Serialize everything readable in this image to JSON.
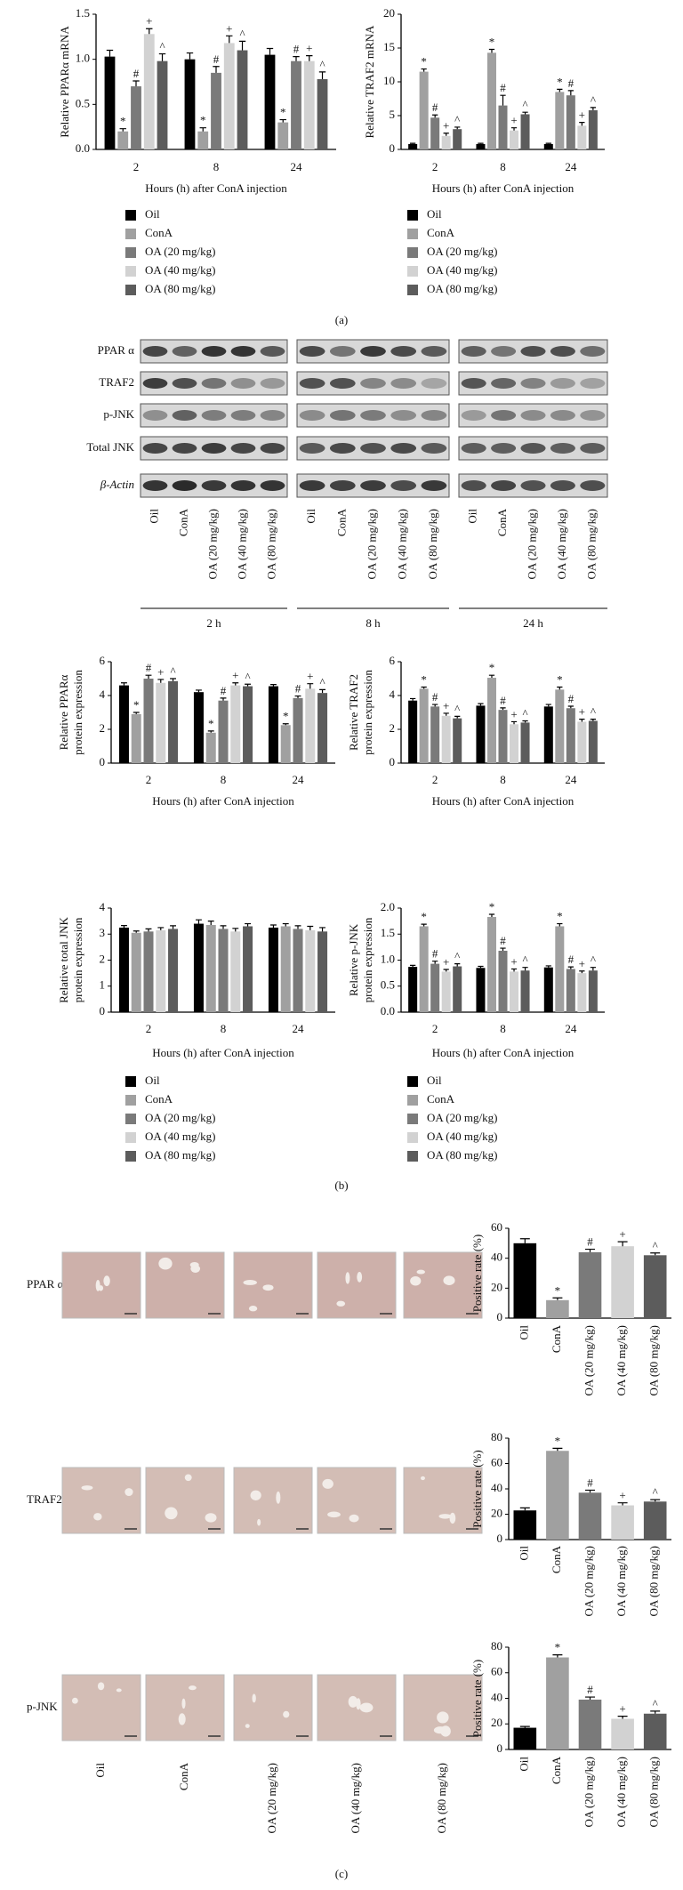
{
  "panels": [
    "(a)",
    "(b)",
    "(c)"
  ],
  "blot": {
    "rows": [
      "PPAR α",
      "TRAF2",
      "p-JNK",
      "Total JNK",
      "β-Actin"
    ],
    "lanes": [
      "Oil",
      "ConA",
      "OA (20 mg/kg)",
      "OA (40 mg/kg)",
      "OA (80 mg/kg)"
    ],
    "groups": [
      "2 h",
      "8 h",
      "24 h"
    ]
  },
  "histology": {
    "rows": [
      "PPAR α",
      "TRAF2",
      "p-JNK"
    ],
    "columns": [
      "Oil",
      "ConA",
      "OA (20 mg/kg)",
      "OA (40 mg/kg)",
      "OA (80 mg/kg)"
    ]
  },
  "chart_data": [
    {
      "type": "grouped_bar",
      "ylabel": [
        "Relative PPARα mRNA"
      ],
      "xlabel": "Hours (h) after ConA injection",
      "categories": [
        "2",
        "8",
        "24"
      ],
      "ylim": [
        0,
        1.5
      ],
      "yticks": [
        {
          "value": 0,
          "label": "0.0"
        },
        0.5,
        {
          "value": 1,
          "label": "1.0"
        },
        1.5
      ],
      "legend": "below",
      "series": [
        {
          "name": "Oil",
          "color": "#000000",
          "marker": null,
          "values": [
            1.03,
            1.0,
            1.05
          ],
          "errors": [
            0.07,
            0.07,
            0.07
          ]
        },
        {
          "name": "ConA",
          "color": "#a0a0a0",
          "marker": "*",
          "values": [
            0.2,
            0.2,
            0.3
          ],
          "errors": [
            0.03,
            0.04,
            0.03
          ]
        },
        {
          "name": "OA (20 mg/kg)",
          "color": "#7a7a7a",
          "marker": "#",
          "values": [
            0.7,
            0.85,
            0.98
          ],
          "errors": [
            0.06,
            0.07,
            0.05
          ]
        },
        {
          "name": "OA (40 mg/kg)",
          "color": "#d2d2d2",
          "marker": "+",
          "values": [
            1.28,
            1.18,
            0.98
          ],
          "errors": [
            0.06,
            0.08,
            0.06
          ]
        },
        {
          "name": "OA (80 mg/kg)",
          "color": "#5c5c5c",
          "marker": "^",
          "values": [
            0.98,
            1.1,
            0.78
          ],
          "errors": [
            0.08,
            0.1,
            0.08
          ]
        }
      ]
    },
    {
      "type": "grouped_bar",
      "ylabel": [
        "Relative TRAF2 mRNA"
      ],
      "xlabel": "Hours (h) after ConA injection",
      "categories": [
        "2",
        "8",
        "24"
      ],
      "ylim": [
        0,
        20
      ],
      "yticks": [
        0,
        5,
        10,
        15,
        20
      ],
      "legend": "below",
      "series": [
        {
          "name": "Oil",
          "color": "#000000",
          "marker": null,
          "values": [
            0.8,
            0.8,
            0.8
          ],
          "errors": [
            0.1,
            0.1,
            0.1
          ]
        },
        {
          "name": "ConA",
          "color": "#a0a0a0",
          "marker": "*",
          "values": [
            11.5,
            14.3,
            8.5
          ],
          "errors": [
            0.4,
            0.5,
            0.4
          ]
        },
        {
          "name": "OA (20 mg/kg)",
          "color": "#7a7a7a",
          "marker": "#",
          "values": [
            4.7,
            6.5,
            8.0
          ],
          "errors": [
            0.4,
            1.5,
            0.7
          ]
        },
        {
          "name": "OA (40 mg/kg)",
          "color": "#d2d2d2",
          "marker": "+",
          "values": [
            2.0,
            2.8,
            3.5
          ],
          "errors": [
            0.4,
            0.4,
            0.5
          ]
        },
        {
          "name": "OA (80 mg/kg)",
          "color": "#5c5c5c",
          "marker": "^",
          "values": [
            3.0,
            5.2,
            5.8
          ],
          "errors": [
            0.3,
            0.3,
            0.4
          ]
        }
      ]
    },
    {
      "type": "grouped_bar",
      "ylabel": [
        "Relative PPARα",
        "protein expression"
      ],
      "xlabel": "Hours (h) after ConA injection",
      "categories": [
        "2",
        "8",
        "24"
      ],
      "ylim": [
        0,
        6
      ],
      "yticks": [
        0,
        2,
        4,
        6
      ],
      "series": [
        {
          "name": "Oil",
          "color": "#000000",
          "marker": null,
          "values": [
            4.6,
            4.2,
            4.55
          ],
          "errors": [
            0.15,
            0.12,
            0.1
          ]
        },
        {
          "name": "ConA",
          "color": "#a0a0a0",
          "marker": "*",
          "values": [
            2.9,
            1.8,
            2.25
          ],
          "errors": [
            0.1,
            0.1,
            0.08
          ]
        },
        {
          "name": "OA (20 mg/kg)",
          "color": "#7a7a7a",
          "marker": "#",
          "values": [
            5.0,
            3.7,
            3.85
          ],
          "errors": [
            0.2,
            0.15,
            0.12
          ]
        },
        {
          "name": "OA (40 mg/kg)",
          "color": "#d2d2d2",
          "marker": "+",
          "values": [
            4.75,
            4.6,
            4.4
          ],
          "errors": [
            0.2,
            0.15,
            0.3
          ]
        },
        {
          "name": "OA (80 mg/kg)",
          "color": "#5c5c5c",
          "marker": "^",
          "values": [
            4.85,
            4.55,
            4.15
          ],
          "errors": [
            0.15,
            0.12,
            0.2
          ]
        }
      ]
    },
    {
      "type": "grouped_bar",
      "ylabel": [
        "Relative TRAF2",
        "protein expression"
      ],
      "xlabel": "Hours (h) after ConA injection",
      "categories": [
        "2",
        "8",
        "24"
      ],
      "ylim": [
        0,
        6
      ],
      "yticks": [
        0,
        2,
        4,
        6
      ],
      "series": [
        {
          "name": "Oil",
          "color": "#000000",
          "marker": null,
          "values": [
            3.7,
            3.4,
            3.35
          ],
          "errors": [
            0.12,
            0.12,
            0.12
          ]
        },
        {
          "name": "ConA",
          "color": "#a0a0a0",
          "marker": "*",
          "values": [
            4.4,
            5.05,
            4.35
          ],
          "errors": [
            0.1,
            0.15,
            0.15
          ]
        },
        {
          "name": "OA (20 mg/kg)",
          "color": "#7a7a7a",
          "marker": "#",
          "values": [
            3.35,
            3.15,
            3.25
          ],
          "errors": [
            0.12,
            0.12,
            0.12
          ]
        },
        {
          "name": "OA (40 mg/kg)",
          "color": "#d2d2d2",
          "marker": "+",
          "values": [
            2.8,
            2.3,
            2.45
          ],
          "errors": [
            0.15,
            0.15,
            0.15
          ]
        },
        {
          "name": "OA (80 mg/kg)",
          "color": "#5c5c5c",
          "marker": "^",
          "values": [
            2.65,
            2.4,
            2.5
          ],
          "errors": [
            0.12,
            0.1,
            0.1
          ]
        }
      ]
    },
    {
      "type": "grouped_bar",
      "ylabel": [
        "Relative total JNK",
        "protein expression"
      ],
      "xlabel": "Hours (h) after ConA injection",
      "categories": [
        "2",
        "8",
        "24"
      ],
      "ylim": [
        0,
        4
      ],
      "yticks": [
        0,
        1,
        2,
        3,
        4
      ],
      "legend": "below",
      "series": [
        {
          "name": "Oil",
          "color": "#000000",
          "marker": null,
          "values": [
            3.25,
            3.4,
            3.25
          ],
          "errors": [
            0.08,
            0.15,
            0.1
          ]
        },
        {
          "name": "ConA",
          "color": "#a0a0a0",
          "marker": null,
          "values": [
            3.05,
            3.35,
            3.3
          ],
          "errors": [
            0.07,
            0.15,
            0.1
          ]
        },
        {
          "name": "OA (20 mg/kg)",
          "color": "#7a7a7a",
          "marker": null,
          "values": [
            3.1,
            3.2,
            3.2
          ],
          "errors": [
            0.1,
            0.12,
            0.12
          ]
        },
        {
          "name": "OA (40 mg/kg)",
          "color": "#d2d2d2",
          "marker": null,
          "values": [
            3.15,
            3.1,
            3.15
          ],
          "errors": [
            0.1,
            0.12,
            0.15
          ]
        },
        {
          "name": "OA (80 mg/kg)",
          "color": "#5c5c5c",
          "marker": null,
          "values": [
            3.2,
            3.3,
            3.1
          ],
          "errors": [
            0.12,
            0.1,
            0.15
          ]
        }
      ]
    },
    {
      "type": "grouped_bar",
      "ylabel": [
        "Relative p-JNK",
        "protein expression"
      ],
      "xlabel": "Hours (h) after ConA injection",
      "categories": [
        "2",
        "8",
        "24"
      ],
      "ylim": [
        0,
        2
      ],
      "yticks": [
        {
          "value": 0,
          "label": "0.0"
        },
        0.5,
        {
          "value": 1,
          "label": "1.0"
        },
        1.5,
        {
          "value": 2,
          "label": "2.0"
        }
      ],
      "legend": "below",
      "series": [
        {
          "name": "Oil",
          "color": "#000000",
          "marker": null,
          "values": [
            0.87,
            0.85,
            0.86
          ],
          "errors": [
            0.03,
            0.03,
            0.03
          ]
        },
        {
          "name": "ConA",
          "color": "#a0a0a0",
          "marker": "*",
          "values": [
            1.65,
            1.83,
            1.65
          ],
          "errors": [
            0.04,
            0.05,
            0.05
          ]
        },
        {
          "name": "OA (20 mg/kg)",
          "color": "#7a7a7a",
          "marker": "#",
          "values": [
            0.93,
            1.18,
            0.83
          ],
          "errors": [
            0.05,
            0.05,
            0.04
          ]
        },
        {
          "name": "OA (40 mg/kg)",
          "color": "#d2d2d2",
          "marker": "+",
          "values": [
            0.78,
            0.78,
            0.75
          ],
          "errors": [
            0.04,
            0.05,
            0.04
          ]
        },
        {
          "name": "OA (80 mg/kg)",
          "color": "#5c5c5c",
          "marker": "^",
          "values": [
            0.88,
            0.8,
            0.8
          ],
          "errors": [
            0.05,
            0.06,
            0.06
          ]
        }
      ]
    },
    {
      "type": "bar",
      "ylabel": [
        "Positive rate (%)"
      ],
      "categories": [
        "Oil",
        "ConA",
        "OA (20 mg/kg)",
        "OA (40 mg/kg)",
        "OA (80 mg/kg)"
      ],
      "colors": [
        "#000000",
        "#a0a0a0",
        "#7a7a7a",
        "#d2d2d2",
        "#5c5c5c"
      ],
      "markers": [
        null,
        "*",
        "#",
        "+",
        "^"
      ],
      "values": [
        50,
        12,
        44,
        48,
        42
      ],
      "errors": [
        3,
        1.5,
        2,
        3,
        1.5
      ],
      "ylim": [
        0,
        60
      ],
      "yticks": [
        0,
        20,
        40,
        60
      ]
    },
    {
      "type": "bar",
      "ylabel": [
        "Positive rate (%)"
      ],
      "categories": [
        "Oil",
        "ConA",
        "OA (20 mg/kg)",
        "OA (40 mg/kg)",
        "OA (80 mg/kg)"
      ],
      "colors": [
        "#000000",
        "#a0a0a0",
        "#7a7a7a",
        "#d2d2d2",
        "#5c5c5c"
      ],
      "markers": [
        null,
        "*",
        "#",
        "+",
        "^"
      ],
      "values": [
        23,
        70,
        37,
        27,
        30
      ],
      "errors": [
        2,
        2,
        2,
        2,
        1.5
      ],
      "ylim": [
        0,
        80
      ],
      "yticks": [
        0,
        20,
        40,
        60,
        80
      ]
    },
    {
      "type": "bar",
      "ylabel": [
        "Positive rate (%)"
      ],
      "categories": [
        "Oil",
        "ConA",
        "OA (20 mg/kg)",
        "OA (40 mg/kg)",
        "OA (80 mg/kg)"
      ],
      "colors": [
        "#000000",
        "#a0a0a0",
        "#7a7a7a",
        "#d2d2d2",
        "#5c5c5c"
      ],
      "markers": [
        null,
        "*",
        "#",
        "+",
        "^"
      ],
      "values": [
        17,
        72,
        39,
        24,
        28
      ],
      "errors": [
        1,
        2,
        2,
        2,
        2
      ],
      "ylim": [
        0,
        80
      ],
      "yticks": [
        0,
        20,
        40,
        60,
        80
      ]
    }
  ]
}
